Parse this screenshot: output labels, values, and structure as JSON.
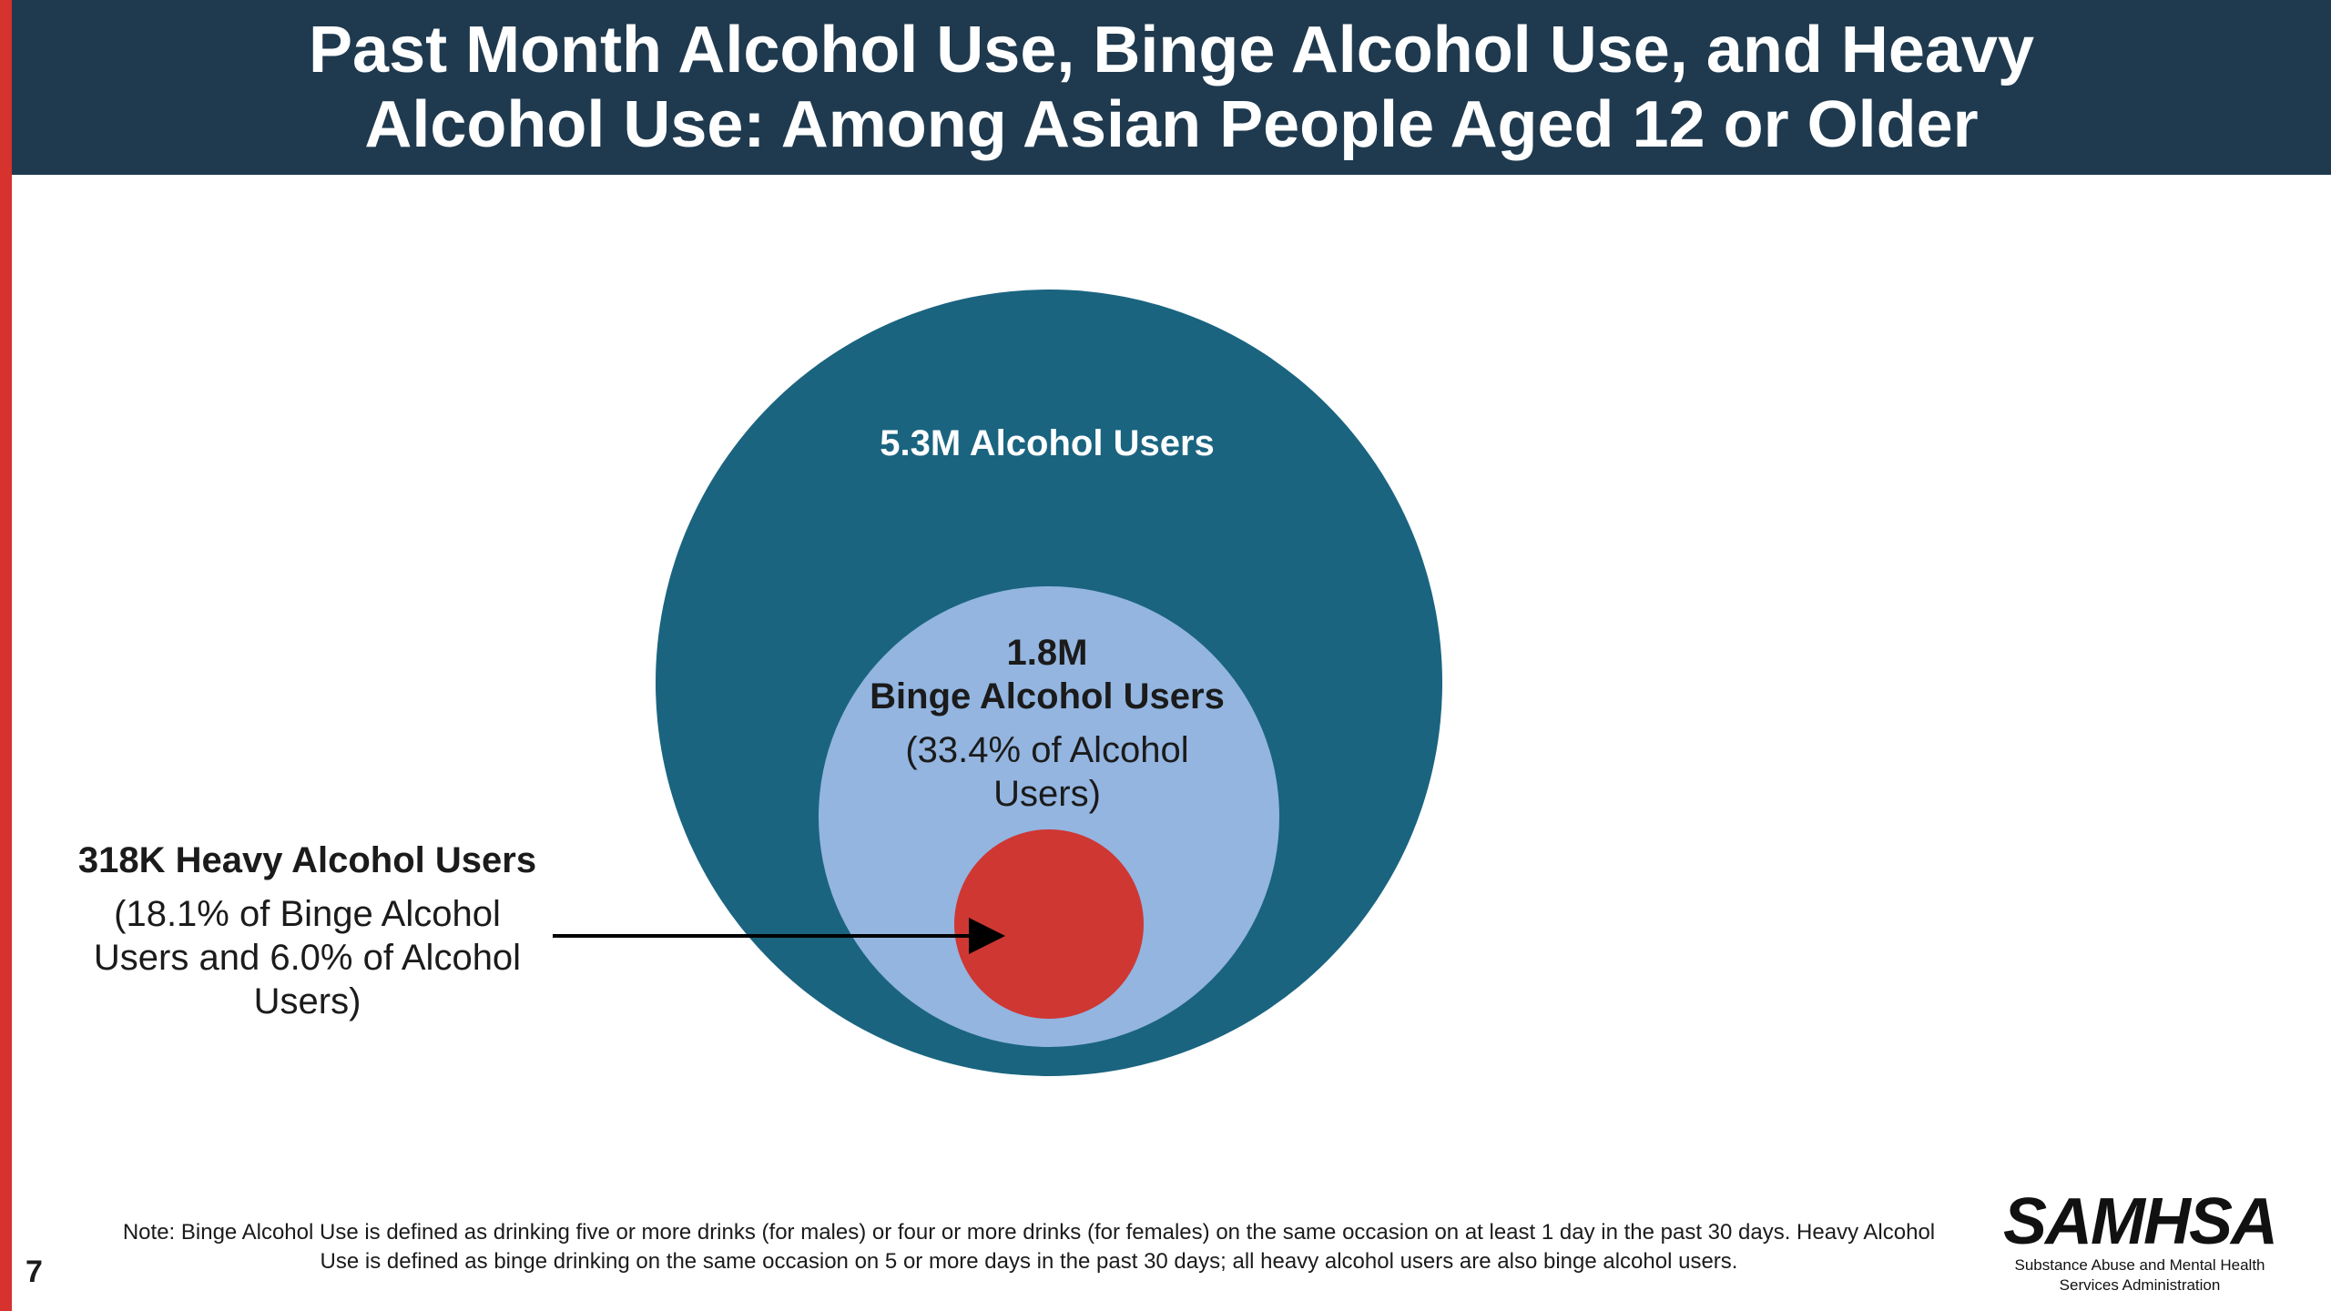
{
  "title": "Past Month Alcohol Use, Binge Alcohol Use, and Heavy\nAlcohol Use: Among Asian People Aged 12 or Older",
  "circles": {
    "alcohol_users": {
      "label": "5.3M Alcohol Users",
      "value_millions": 5.3
    },
    "binge_users": {
      "value": "1.8M",
      "label": "Binge Alcohol Users",
      "pct": "(33.4% of Alcohol Users)",
      "value_millions": 1.8
    },
    "heavy_users": {
      "label": "318K Heavy Alcohol Users",
      "pct": "(18.1% of Binge Alcohol Users and 6.0% of Alcohol Users)",
      "value_millions": 0.318
    }
  },
  "note": "Note: Binge Alcohol Use is defined as drinking five or more drinks (for males) or four or more drinks (for females) on the same occasion on at least 1 day in the past 30 days. Heavy Alcohol Use is defined as binge drinking on the same occasion on 5 or more days in the past 30 days; all heavy alcohol users are also binge alcohol users.",
  "page_number": "7",
  "logo": {
    "name": "SAMHSA",
    "subtitle": "Substance Abuse and Mental Health Services Administration"
  },
  "colors": {
    "header_bg": "#1f3a4f",
    "left_bar": "#d6322e",
    "outer_circle": "#1a6480",
    "middle_circle": "#93b5e0",
    "inner_circle": "#cf3733",
    "arrow": "#000000"
  }
}
